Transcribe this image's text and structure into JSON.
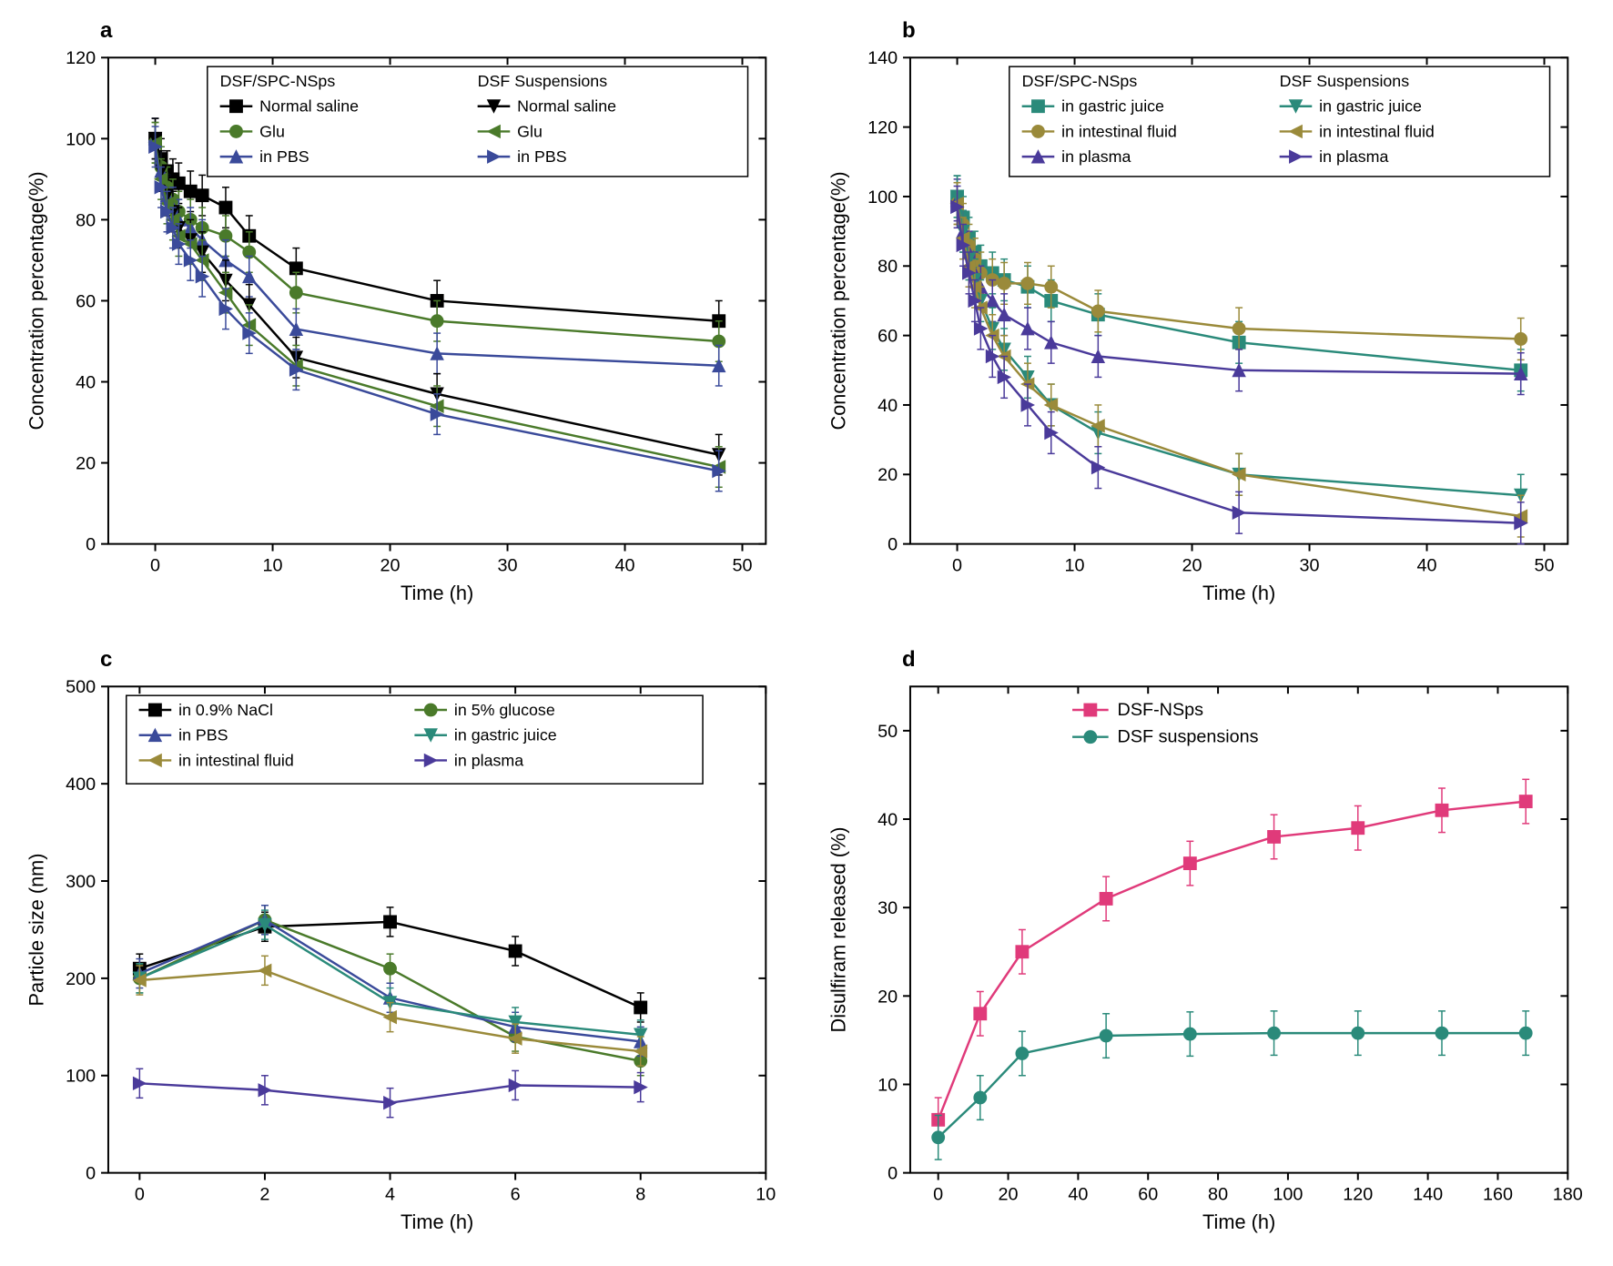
{
  "chart_a": {
    "panel_label": "a",
    "type": "line",
    "xlabel": "Time (h)",
    "ylabel": "Concentration percentage(%)",
    "label_fontsize": 22,
    "tick_fontsize": 20,
    "xlim": [
      -4,
      52
    ],
    "ylim": [
      0,
      120
    ],
    "xticks": [
      0,
      10,
      20,
      30,
      40,
      50
    ],
    "yticks": [
      0,
      20,
      40,
      60,
      80,
      100,
      120
    ],
    "background_color": "#ffffff",
    "axis_color": "#000000",
    "axis_width": 2,
    "legend_headers": [
      "DSF/SPC-NSps",
      "DSF Suspensions"
    ],
    "series": [
      {
        "name": "Normal saline",
        "group": "DSF/SPC-NSps",
        "color": "#000000",
        "marker": "square-filled",
        "x": [
          0,
          0.5,
          1,
          1.5,
          2,
          3,
          4,
          6,
          8,
          12,
          24,
          48
        ],
        "y": [
          100,
          95,
          92,
          90,
          89,
          87,
          86,
          83,
          76,
          68,
          60,
          55
        ]
      },
      {
        "name": "Glu",
        "group": "DSF/SPC-NSps",
        "color": "#4a7a2a",
        "marker": "circle-filled",
        "x": [
          0,
          0.5,
          1,
          1.5,
          2,
          3,
          4,
          6,
          8,
          12,
          24,
          48
        ],
        "y": [
          99,
          93,
          88,
          85,
          82,
          80,
          78,
          76,
          72,
          62,
          55,
          50
        ]
      },
      {
        "name": "in PBS",
        "group": "DSF/SPC-NSps",
        "color": "#3a4a9a",
        "marker": "triangle-up-filled",
        "x": [
          0,
          0.5,
          1,
          1.5,
          2,
          3,
          4,
          6,
          8,
          12,
          24,
          48
        ],
        "y": [
          100,
          92,
          86,
          83,
          80,
          78,
          75,
          70,
          66,
          53,
          47,
          44
        ]
      },
      {
        "name": "Normal saline",
        "group": "DSF Suspensions",
        "color": "#000000",
        "marker": "triangle-down-filled",
        "x": [
          0,
          0.5,
          1,
          1.5,
          2,
          3,
          4,
          6,
          8,
          12,
          24,
          48
        ],
        "y": [
          100,
          92,
          86,
          82,
          78,
          75,
          72,
          65,
          59,
          46,
          37,
          22
        ]
      },
      {
        "name": "Glu",
        "group": "DSF Suspensions",
        "color": "#4a7a2a",
        "marker": "triangle-left-filled",
        "x": [
          0,
          0.5,
          1,
          1.5,
          2,
          3,
          4,
          6,
          8,
          12,
          24,
          48
        ],
        "y": [
          99,
          90,
          84,
          80,
          76,
          74,
          70,
          62,
          54,
          44,
          34,
          19
        ]
      },
      {
        "name": "in PBS",
        "group": "DSF Suspensions",
        "color": "#3a4a9a",
        "marker": "triangle-right-filled",
        "x": [
          0,
          0.5,
          1,
          1.5,
          2,
          3,
          4,
          6,
          8,
          12,
          24,
          48
        ],
        "y": [
          98,
          88,
          82,
          78,
          74,
          70,
          66,
          58,
          52,
          43,
          32,
          18
        ]
      }
    ],
    "error_bar": 5
  },
  "chart_b": {
    "panel_label": "b",
    "type": "line",
    "xlabel": "Time (h)",
    "ylabel": "Concentration percentage(%)",
    "label_fontsize": 22,
    "tick_fontsize": 20,
    "xlim": [
      -4,
      52
    ],
    "ylim": [
      0,
      140
    ],
    "xticks": [
      0,
      10,
      20,
      30,
      40,
      50
    ],
    "yticks": [
      0,
      20,
      40,
      60,
      80,
      100,
      120,
      140
    ],
    "background_color": "#ffffff",
    "axis_color": "#000000",
    "axis_width": 2,
    "legend_headers": [
      "DSF/SPC-NSps",
      "DSF Suspensions"
    ],
    "series": [
      {
        "name": "in gastric juice",
        "group": "DSF/SPC-NSps",
        "color": "#2a8a7a",
        "marker": "square-filled",
        "x": [
          0,
          0.5,
          1,
          1.5,
          2,
          3,
          4,
          6,
          8,
          12,
          24,
          48
        ],
        "y": [
          100,
          94,
          88,
          84,
          80,
          78,
          76,
          74,
          70,
          66,
          58,
          50
        ]
      },
      {
        "name": "in intestinal fluid",
        "group": "DSF/SPC-NSps",
        "color": "#9a8a3a",
        "marker": "circle-filled",
        "x": [
          0,
          0.5,
          1,
          1.5,
          2,
          3,
          4,
          6,
          8,
          12,
          24,
          48
        ],
        "y": [
          98,
          92,
          86,
          82,
          78,
          76,
          75,
          75,
          74,
          67,
          62,
          59
        ]
      },
      {
        "name": "in plasma",
        "group": "DSF/SPC-NSps",
        "color": "#4a3a9a",
        "marker": "triangle-up-filled",
        "x": [
          0,
          0.5,
          1,
          1.5,
          2,
          3,
          4,
          6,
          8,
          12,
          24,
          48
        ],
        "y": [
          99,
          90,
          84,
          78,
          74,
          70,
          66,
          62,
          58,
          54,
          50,
          49
        ]
      },
      {
        "name": "in gastric juice",
        "group": "DSF Suspensions",
        "color": "#2a8a7a",
        "marker": "triangle-down-filled",
        "x": [
          0,
          0.5,
          1,
          1.5,
          2,
          3,
          4,
          6,
          8,
          12,
          24,
          48
        ],
        "y": [
          100,
          90,
          82,
          76,
          70,
          62,
          56,
          48,
          40,
          32,
          20,
          14
        ]
      },
      {
        "name": "in intestinal fluid",
        "group": "DSF Suspensions",
        "color": "#9a8a3a",
        "marker": "triangle-left-filled",
        "x": [
          0,
          0.5,
          1,
          1.5,
          2,
          3,
          4,
          6,
          8,
          12,
          24,
          48
        ],
        "y": [
          98,
          88,
          80,
          74,
          68,
          60,
          54,
          46,
          40,
          34,
          20,
          8
        ]
      },
      {
        "name": "in plasma",
        "group": "DSF Suspensions",
        "color": "#4a3a9a",
        "marker": "triangle-right-filled",
        "x": [
          0,
          0.5,
          1,
          1.5,
          2,
          3,
          4,
          6,
          8,
          12,
          24,
          48
        ],
        "y": [
          97,
          86,
          78,
          70,
          62,
          54,
          48,
          40,
          32,
          22,
          9,
          6
        ]
      }
    ],
    "error_bar": 6
  },
  "chart_c": {
    "panel_label": "c",
    "type": "line",
    "xlabel": "Time (h)",
    "ylabel": "Particle size (nm)",
    "label_fontsize": 22,
    "tick_fontsize": 20,
    "xlim": [
      -0.5,
      10
    ],
    "ylim": [
      0,
      500
    ],
    "xticks": [
      0,
      2,
      4,
      6,
      8,
      10
    ],
    "yticks": [
      0,
      100,
      200,
      300,
      400,
      500
    ],
    "background_color": "#ffffff",
    "axis_color": "#000000",
    "axis_width": 2,
    "series": [
      {
        "name": "in 0.9% NaCl",
        "color": "#000000",
        "marker": "square-filled",
        "x": [
          0,
          2,
          4,
          6,
          8
        ],
        "y": [
          210,
          253,
          258,
          228,
          170
        ]
      },
      {
        "name": "in 5% glucose",
        "color": "#4a7a2a",
        "marker": "circle-filled",
        "x": [
          0,
          2,
          4,
          6,
          8
        ],
        "y": [
          200,
          260,
          210,
          140,
          115
        ]
      },
      {
        "name": "in PBS",
        "color": "#3a4a9a",
        "marker": "triangle-up-filled",
        "x": [
          0,
          2,
          4,
          6,
          8
        ],
        "y": [
          205,
          260,
          180,
          150,
          135
        ]
      },
      {
        "name": "in gastric juice",
        "color": "#2a8a7a",
        "marker": "triangle-down-filled",
        "x": [
          0,
          2,
          4,
          6,
          8
        ],
        "y": [
          200,
          255,
          175,
          155,
          142
        ]
      },
      {
        "name": "in intestinal fluid",
        "color": "#9a8a3a",
        "marker": "triangle-left-filled",
        "x": [
          0,
          2,
          4,
          6,
          8
        ],
        "y": [
          198,
          208,
          160,
          138,
          125
        ]
      },
      {
        "name": "in plasma",
        "color": "#4a3a9a",
        "marker": "triangle-right-filled",
        "x": [
          0,
          2,
          4,
          6,
          8
        ],
        "y": [
          92,
          85,
          72,
          90,
          88
        ]
      }
    ],
    "error_bar": 15
  },
  "chart_d": {
    "panel_label": "d",
    "type": "line",
    "xlabel": "Time (h)",
    "ylabel": "Disulfiram released (%)",
    "label_fontsize": 22,
    "tick_fontsize": 20,
    "xlim": [
      -8,
      180
    ],
    "ylim": [
      0,
      55
    ],
    "xticks": [
      0,
      20,
      40,
      60,
      80,
      100,
      120,
      140,
      160,
      180
    ],
    "yticks": [
      0,
      10,
      20,
      30,
      40,
      50
    ],
    "background_color": "#ffffff",
    "axis_color": "#000000",
    "axis_width": 2,
    "series": [
      {
        "name": "DSF-NSps",
        "color": "#e03a7a",
        "marker": "square-filled",
        "x": [
          0,
          12,
          24,
          48,
          72,
          96,
          120,
          144,
          168
        ],
        "y": [
          6,
          18,
          25,
          31,
          35,
          38,
          39,
          41,
          42
        ]
      },
      {
        "name": "DSF suspensions",
        "color": "#2a8a7a",
        "marker": "circle-filled",
        "x": [
          0,
          12,
          24,
          48,
          72,
          96,
          120,
          144,
          168
        ],
        "y": [
          4,
          8.5,
          13.5,
          15.5,
          15.7,
          15.8,
          15.8,
          15.8,
          15.8
        ]
      }
    ],
    "error_bar": 2.5
  }
}
